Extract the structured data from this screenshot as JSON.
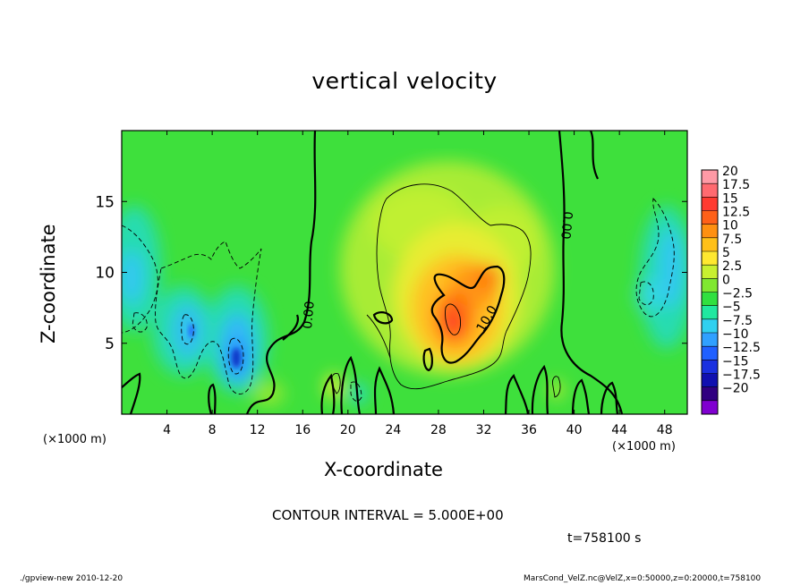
{
  "title": "vertical velocity",
  "xlabel": "X-coordinate",
  "ylabel": "Z-coordinate",
  "x_unit_label": "(×1000 m)",
  "contour_interval": "CONTOUR INTERVAL = 5.000E+00",
  "time_label": "t=758100 s",
  "footer_left": "./gpview-new  2010-12-20",
  "footer_right": "MarsCond_VelZ.nc@VelZ,x=0:50000,z=0:20000,t=758100",
  "chart_data": {
    "type": "heatmap",
    "variable": "vertical velocity",
    "x_unit": "×1000 m",
    "xlim": [
      0,
      50
    ],
    "ylim": [
      0,
      20
    ],
    "x_ticks": [
      4,
      8,
      12,
      16,
      20,
      24,
      28,
      32,
      36,
      40,
      44,
      48
    ],
    "y_ticks": [
      5,
      10,
      15
    ],
    "contour_interval": 5.0,
    "colorbar": {
      "levels": [
        "20",
        "17.5",
        "15",
        "12.5",
        "10",
        "7.5",
        "5",
        "2.5",
        "0",
        "−2.5",
        "−5",
        "−7.5",
        "−10",
        "−12.5",
        "−15",
        "−17.5",
        "−20"
      ],
      "colors": [
        "#ff9aa6",
        "#ff6a70",
        "#ff3a30",
        "#ff6018",
        "#ff9010",
        "#ffc018",
        "#ffe830",
        "#c8f030",
        "#80e830",
        "#30e040",
        "#20e8a0",
        "#30d0f0",
        "#30a0ff",
        "#2060ff",
        "#1a30e0",
        "#1010b0",
        "#300080",
        "#8000d0"
      ]
    },
    "contour_labels": [
      {
        "text": "0.00",
        "x": 16.8,
        "z": 7.0
      },
      {
        "text": "0.00",
        "x": 39.5,
        "z": 14.4
      },
      {
        "text": "10.0",
        "x": 32.5,
        "z": 7.0
      }
    ],
    "features": [
      {
        "kind": "max",
        "x": 29.5,
        "z": 6.8,
        "w": 10.0
      },
      {
        "kind": "min",
        "x": 10.0,
        "z": 4.2,
        "w": -10.0
      },
      {
        "kind": "min",
        "x": 5.5,
        "z": 6.0,
        "w": -7.5
      },
      {
        "kind": "min",
        "x": 1.0,
        "z": 10.0,
        "w": -5.0
      },
      {
        "kind": "min",
        "x": 47.0,
        "z": 9.0,
        "w": -5.0
      }
    ]
  }
}
